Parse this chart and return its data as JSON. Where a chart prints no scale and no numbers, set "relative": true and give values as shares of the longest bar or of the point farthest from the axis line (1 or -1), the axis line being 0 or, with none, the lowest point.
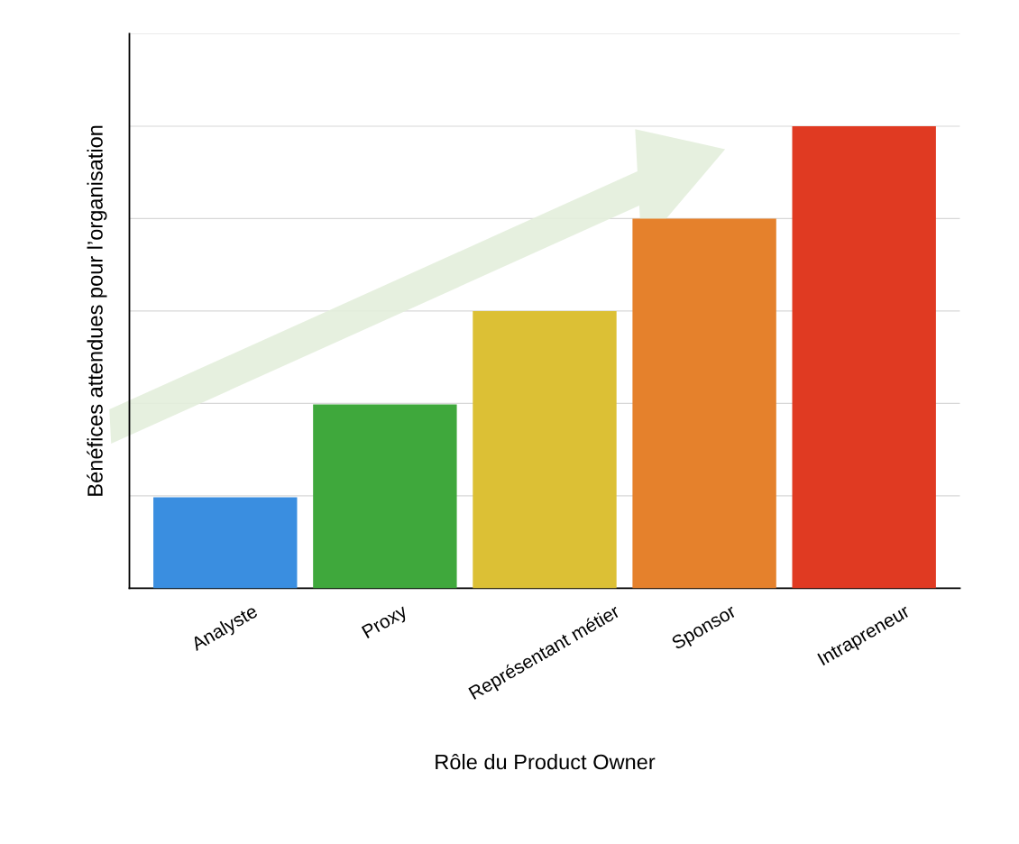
{
  "chart_data": {
    "type": "bar",
    "relative": true,
    "xlabel": "Rôle du Product Owner",
    "ylabel": "Bénéfices attendues pour l’organisation",
    "categories": [
      "Analyste",
      "Proxy",
      "Représentant métier",
      "Sponsor",
      "Intrapreneur"
    ],
    "values": [
      0.197,
      0.398,
      0.6,
      0.8,
      1.0
    ],
    "colors": [
      "#3a8ee0",
      "#3fa83c",
      "#dcc035",
      "#e5812c",
      "#e03a22"
    ],
    "grid": "y",
    "legend": false
  }
}
